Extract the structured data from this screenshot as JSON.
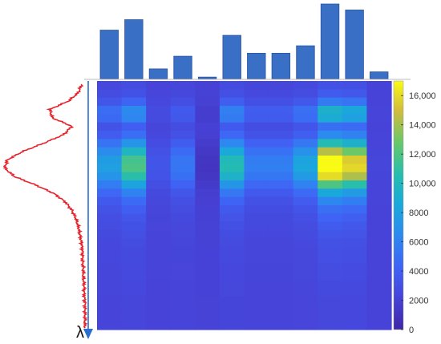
{
  "chart_data": {
    "type": "heatmap",
    "axis_symbol": "λ",
    "colorbar": {
      "min": 0,
      "max": 17000,
      "ticks": [
        0,
        2000,
        4000,
        6000,
        8000,
        10000,
        12000,
        14000,
        16000
      ],
      "tick_labels": [
        "0",
        "2000",
        "4000",
        "6000",
        "8000",
        "10,000",
        "12,000",
        "14,000",
        "16,000"
      ]
    },
    "column_totals": [
      0.65,
      0.79,
      0.13,
      0.3,
      0.02,
      0.58,
      0.34,
      0.34,
      0.44,
      1.0,
      0.92,
      0.09
    ],
    "column_peaks": [
      7000,
      11000,
      2500,
      4500,
      300,
      9500,
      5000,
      5000,
      7500,
      17000,
      15000,
      1500
    ],
    "row_profile": [
      0.06,
      0.1,
      0.22,
      0.45,
      0.42,
      0.18,
      0.28,
      0.52,
      0.78,
      0.97,
      1.0,
      0.88,
      0.62,
      0.4,
      0.26,
      0.18,
      0.13,
      0.1,
      0.08,
      0.06,
      0.05,
      0.05,
      0.04,
      0.04,
      0.03,
      0.03,
      0.02,
      0.02,
      0.02,
      0.02
    ],
    "background_level": 2200,
    "colors": {
      "bars": "#3a6fc6",
      "bar_stroke": "#2a55a0",
      "profile_line": "#e8222a",
      "axis_arrow": "#2a6fd0"
    }
  }
}
